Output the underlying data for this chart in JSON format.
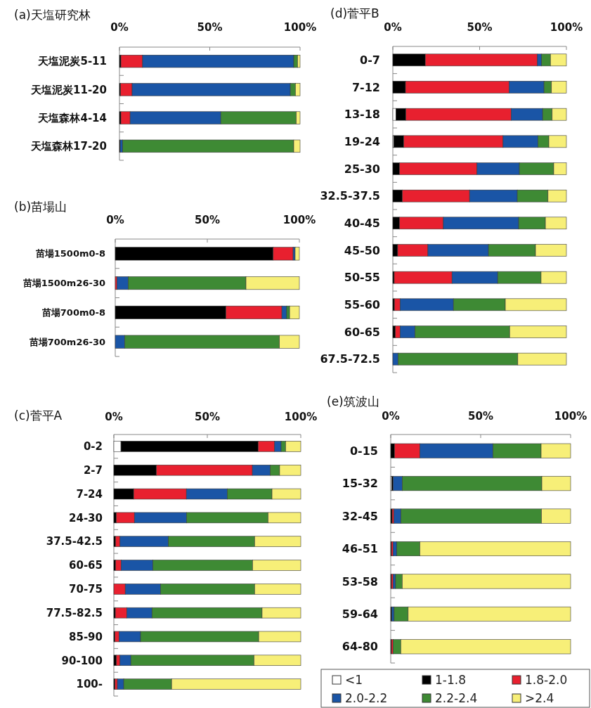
{
  "chart_data": [
    {
      "type": "bar",
      "title": "(a)天塩研究林",
      "orientation": "horizontal",
      "stacked": true,
      "legend": false,
      "xlim": [
        0,
        100
      ],
      "xticks": [
        {
          "value": 0,
          "label": "0%"
        },
        {
          "value": 50,
          "label": "50%"
        },
        {
          "value": 100,
          "label": "100%"
        }
      ],
      "categories": [
        "天塩泥炭5-11",
        "天塩泥炭11-20",
        "天塩森林4-14",
        "天塩森林17-20"
      ],
      "series": [
        {
          "color": "#ffffff",
          "values": [
            0,
            0,
            0,
            0
          ]
        },
        {
          "color": "#000000",
          "values": [
            0.8,
            0.6,
            0.8,
            0.4
          ]
        },
        {
          "color": "#e8202f",
          "values": [
            12,
            6.4,
            5.1,
            0
          ]
        },
        {
          "color": "#1a55a6",
          "values": [
            83.7,
            87.6,
            50.2,
            1.4
          ]
        },
        {
          "color": "#3e8a34",
          "values": [
            2.1,
            2.8,
            41.8,
            94.7
          ]
        },
        {
          "color": "#f7ef78",
          "values": [
            1.4,
            2.6,
            2.1,
            3.5
          ]
        }
      ]
    },
    {
      "type": "bar",
      "title": "(b)苗場山",
      "orientation": "horizontal",
      "stacked": true,
      "legend": false,
      "xlim": [
        0,
        100
      ],
      "xticks": [
        {
          "value": 0,
          "label": "0%"
        },
        {
          "value": 50,
          "label": "50%"
        },
        {
          "value": 100,
          "label": "100%"
        }
      ],
      "categories": [
        "苗場1500m0-8",
        "苗場1500m26-30",
        "苗場700m0-8",
        "苗場700m26-30"
      ],
      "series": [
        {
          "color": "#ffffff",
          "values": [
            0,
            0,
            0,
            0
          ]
        },
        {
          "color": "#000000",
          "values": [
            85.8,
            0,
            60.1,
            0
          ]
        },
        {
          "color": "#e8202f",
          "values": [
            10.8,
            0.9,
            30.4,
            0
          ]
        },
        {
          "color": "#1a55a6",
          "values": [
            1.1,
            6.1,
            2.6,
            5.1
          ]
        },
        {
          "color": "#3e8a34",
          "values": [
            0,
            64,
            1.6,
            84.1
          ]
        },
        {
          "color": "#f7ef78",
          "values": [
            2.3,
            29,
            5.3,
            10.8
          ]
        }
      ]
    },
    {
      "type": "bar",
      "title": "(c)菅平A",
      "orientation": "horizontal",
      "stacked": true,
      "legend": false,
      "xlim": [
        0,
        100
      ],
      "xticks": [
        {
          "value": 0,
          "label": "0%"
        },
        {
          "value": 50,
          "label": "50%"
        },
        {
          "value": 100,
          "label": "100%"
        }
      ],
      "categories": [
        "0-2",
        "2-7",
        "7-24",
        "24-30",
        "37.5-42.5",
        "60-65",
        "70-75",
        "77.5-82.5",
        "85-90",
        "90-100",
        "100-"
      ],
      "series": [
        {
          "color": "#ffffff",
          "values": [
            3.8,
            0,
            0,
            0,
            0,
            0,
            0,
            0,
            0,
            0,
            0
          ]
        },
        {
          "color": "#000000",
          "values": [
            73.4,
            22.8,
            10.6,
            1.3,
            0.9,
            0.9,
            0,
            0.8,
            0.6,
            1.4,
            0.6
          ]
        },
        {
          "color": "#e8202f",
          "values": [
            8.8,
            51.3,
            28.2,
            9.7,
            2.4,
            3,
            6.1,
            6.1,
            2.2,
            1.9,
            1.3
          ]
        },
        {
          "color": "#1a55a6",
          "values": [
            3.5,
            9.6,
            21.9,
            27.9,
            25.9,
            17,
            18.9,
            13.5,
            11.5,
            5.8,
            3.4
          ]
        },
        {
          "color": "#3e8a34",
          "values": [
            2.4,
            5,
            23.9,
            43.6,
            46.1,
            53.3,
            50.3,
            58.9,
            63.2,
            65.9,
            25.6
          ]
        },
        {
          "color": "#f7ef78",
          "values": [
            8.1,
            11.3,
            15.4,
            17.5,
            24.7,
            25.8,
            24.7,
            20.7,
            22.5,
            25,
            69.1
          ]
        }
      ]
    },
    {
      "type": "bar",
      "title": "(d)菅平B",
      "orientation": "horizontal",
      "stacked": true,
      "legend": false,
      "xlim": [
        0,
        100
      ],
      "xticks": [
        {
          "value": 0,
          "label": "0%"
        },
        {
          "value": 50,
          "label": "50%"
        },
        {
          "value": 100,
          "label": "100%"
        }
      ],
      "categories": [
        "0-7",
        "7-12",
        "13-18",
        "19-24",
        "25-30",
        "32.5-37.5",
        "40-45",
        "45-50",
        "50-55",
        "55-60",
        "60-65",
        "67.5-72.5"
      ],
      "series": [
        {
          "color": "#ffffff",
          "values": [
            0,
            0,
            1.8,
            0.5,
            0,
            0,
            0,
            0,
            0,
            0,
            0,
            0
          ]
        },
        {
          "color": "#000000",
          "values": [
            18.7,
            7.3,
            5.7,
            5.8,
            3.9,
            5.5,
            3.9,
            2.8,
            0.8,
            0.9,
            1.5,
            0
          ]
        },
        {
          "color": "#e8202f",
          "values": [
            64.6,
            59.7,
            60.7,
            57.2,
            44.6,
            38.7,
            25.2,
            17.4,
            33.3,
            3.3,
            2.7,
            0
          ]
        },
        {
          "color": "#1a55a6",
          "values": [
            2.4,
            20.1,
            18.1,
            20.1,
            24.4,
            27.5,
            43.4,
            34.9,
            26.3,
            30.7,
            8.6,
            3
          ]
        },
        {
          "color": "#3e8a34",
          "values": [
            5.1,
            4.3,
            5.5,
            6.3,
            19.8,
            17.7,
            15.4,
            27.1,
            25,
            29.9,
            54.5,
            69
          ]
        },
        {
          "color": "#f7ef78",
          "values": [
            9.2,
            8.6,
            8.2,
            10.1,
            7.3,
            10.6,
            12.1,
            17.8,
            14.6,
            35.2,
            32.7,
            28
          ]
        }
      ]
    },
    {
      "type": "bar",
      "title": "(e)筑波山",
      "orientation": "horizontal",
      "stacked": true,
      "legend": "bottom",
      "xlim": [
        0,
        100
      ],
      "xticks": [
        {
          "value": 0,
          "label": "0%"
        },
        {
          "value": 50,
          "label": "50%"
        },
        {
          "value": 100,
          "label": "100%"
        }
      ],
      "categories": [
        "0-15",
        "15-32",
        "32-45",
        "46-51",
        "53-58",
        "59-64",
        "64-80"
      ],
      "series": [
        {
          "name": "<1",
          "color": "#ffffff",
          "values": [
            0,
            0.6,
            0,
            0,
            0,
            0,
            0
          ]
        },
        {
          "name": "1-1.8",
          "color": "#000000",
          "values": [
            2.1,
            0.7,
            0.8,
            0.4,
            0.4,
            0.5,
            0.4
          ]
        },
        {
          "name": "1.8-2.0",
          "color": "#e8202f",
          "values": [
            14.1,
            0,
            1,
            0.9,
            0.9,
            0,
            0.9
          ]
        },
        {
          "name": "2.0-2.2",
          "color": "#1a55a6",
          "values": [
            40.6,
            5.1,
            3.9,
            2.1,
            1.4,
            1.4,
            0
          ]
        },
        {
          "name": "2.2-2.4",
          "color": "#3e8a34",
          "values": [
            26.8,
            77.6,
            78.1,
            12.8,
            3.7,
            7.8,
            4.3
          ]
        },
        {
          "name": ">2.4",
          "color": "#f7ef78",
          "values": [
            16.4,
            16,
            16.2,
            83.8,
            93.6,
            90.3,
            94.4
          ]
        }
      ]
    }
  ]
}
